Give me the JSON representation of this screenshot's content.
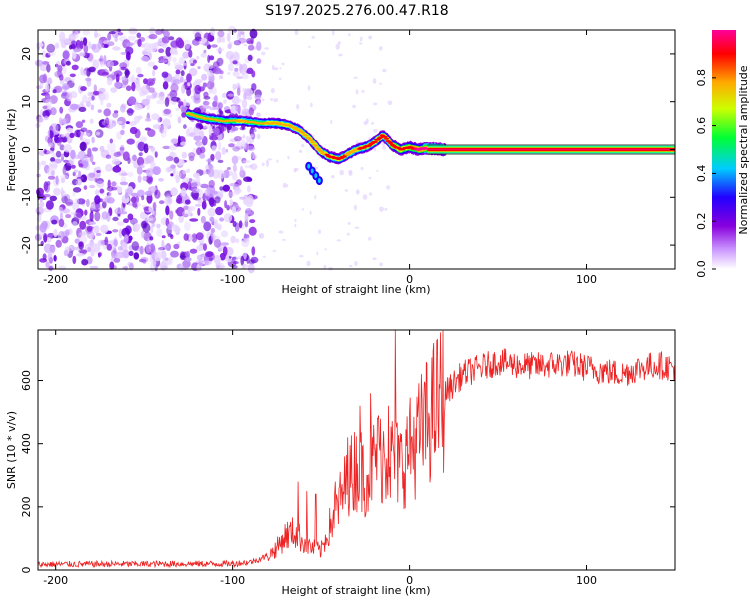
{
  "title": "S197.2025.276.00.47.R18",
  "colors": {
    "snr_line": "#ee2222",
    "background": "#ffffff",
    "frame": "#000000"
  },
  "chart_data": [
    {
      "type": "heatmap",
      "name": "spectrogram",
      "xlabel": "Height of straight line (km)",
      "ylabel": "Frequency (Hz)",
      "xlim": [
        -210,
        150
      ],
      "ylim": [
        -25,
        25
      ],
      "xticks": [
        -200,
        -100,
        0,
        100
      ],
      "yticks": [
        -20,
        -10,
        0,
        10,
        20
      ],
      "colorbar": {
        "label": "Normalized spectral amplitude",
        "range": [
          0,
          1
        ],
        "ticks": [
          0.0,
          0.2,
          0.4,
          0.6,
          0.8
        ],
        "tick_labels": [
          "0.0",
          "0.2",
          "0.4",
          "0.6",
          "0.8"
        ],
        "colormap": [
          "#ffffff",
          "#cc99ff",
          "#8800dd",
          "#2200ff",
          "#00ccff",
          "#00ff33",
          "#ccff00",
          "#ffaa00",
          "#ff0000",
          "#ff0099"
        ]
      },
      "signal_track": {
        "description_values_x_km": [
          -125,
          -115,
          -105,
          -95,
          -85,
          -75,
          -68,
          -62,
          -56,
          -50,
          -45,
          -40,
          -35,
          -30,
          -25,
          -20,
          -15,
          -10,
          -5,
          0,
          5,
          10,
          20,
          150
        ],
        "frequency_hz": [
          7.5,
          6.5,
          6.0,
          6.0,
          5.5,
          5.5,
          5.0,
          4.0,
          2.0,
          -0.5,
          -1.5,
          -2.0,
          -1.0,
          0.0,
          0.5,
          1.5,
          3.0,
          1.0,
          0.0,
          0.5,
          0.0,
          0.3,
          0.0,
          0.0
        ],
        "amplitude": [
          0.45,
          0.5,
          0.5,
          0.55,
          0.5,
          0.6,
          0.55,
          0.55,
          0.6,
          0.6,
          0.7,
          0.7,
          0.65,
          0.65,
          0.7,
          0.7,
          0.7,
          0.75,
          0.8,
          0.8,
          0.9,
          0.95,
          1.0,
          1.0
        ]
      },
      "branch_track": {
        "x_km": [
          -57,
          -55,
          -53,
          -51
        ],
        "frequency_hz": [
          -3.5,
          -4.5,
          -5.5,
          -6.5
        ]
      },
      "noise_region_x_km": [
        -210,
        -95
      ]
    },
    {
      "type": "line",
      "name": "snr",
      "xlabel": "Height of straight line (km)",
      "ylabel": "SNR (10 * v/v)",
      "xlim": [
        -210,
        150
      ],
      "ylim": [
        0,
        760
      ],
      "xticks": [
        -200,
        -100,
        0,
        100
      ],
      "yticks": [
        0,
        200,
        400,
        600
      ],
      "series": [
        {
          "name": "SNR",
          "envelope_x": [
            -210,
            -100,
            -90,
            -80,
            -75,
            -70,
            -65,
            -60,
            -55,
            -50,
            -45,
            -40,
            -35,
            -30,
            -25,
            -20,
            -15,
            -10,
            -5,
            0,
            5,
            10,
            15,
            20,
            25,
            30,
            40,
            50,
            60,
            70,
            80,
            90,
            100,
            110,
            120,
            130,
            140,
            150
          ],
          "envelope_y": [
            18,
            20,
            25,
            45,
            70,
            110,
            120,
            90,
            70,
            60,
            140,
            210,
            280,
            330,
            300,
            340,
            370,
            350,
            330,
            380,
            420,
            470,
            520,
            560,
            590,
            620,
            640,
            660,
            650,
            645,
            650,
            655,
            640,
            630,
            620,
            640,
            650,
            640
          ],
          "spikes": [
            {
              "x": -63,
              "y": 280
            },
            {
              "x": -58,
              "y": 250
            },
            {
              "x": -53,
              "y": 240
            },
            {
              "x": -42,
              "y": 280
            },
            {
              "x": -35,
              "y": 420
            },
            {
              "x": -28,
              "y": 520
            },
            {
              "x": -22,
              "y": 560
            },
            {
              "x": -18,
              "y": 480
            },
            {
              "x": -12,
              "y": 520
            },
            {
              "x": -8,
              "y": 760
            },
            {
              "x": 0,
              "y": 500
            }
          ]
        }
      ]
    }
  ]
}
